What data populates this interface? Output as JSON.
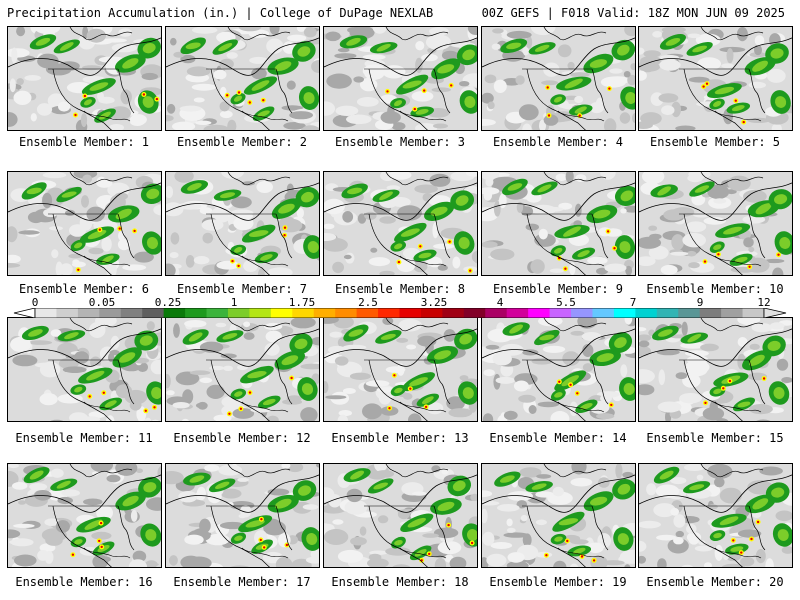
{
  "header": {
    "left": "Precipitation Accumulation (in.) | College of DuPage NEXLAB",
    "right": "00Z GEFS | F018 Valid: 18Z MON JUN 09 2025"
  },
  "panels": [
    "Ensemble Member: 1",
    "Ensemble Member: 2",
    "Ensemble Member: 3",
    "Ensemble Member: 4",
    "Ensemble Member: 5",
    "Ensemble Member: 6",
    "Ensemble Member: 7",
    "Ensemble Member: 8",
    "Ensemble Member: 9",
    "Ensemble Member: 10",
    "Ensemble Member: 11",
    "Ensemble Member: 12",
    "Ensemble Member: 13",
    "Ensemble Member: 14",
    "Ensemble Member: 15",
    "Ensemble Member: 16",
    "Ensemble Member: 17",
    "Ensemble Member: 18",
    "Ensemble Member: 19",
    "Ensemble Member: 20"
  ],
  "colorbar": {
    "ticks": [
      "0",
      "0.05",
      "0.25",
      "1",
      "1.75",
      "2.5",
      "3.25",
      "4",
      "5.5",
      "7",
      "9",
      "12"
    ],
    "colors": [
      "#e8e8e8",
      "#cfcfcf",
      "#b4b4b4",
      "#9a9a9a",
      "#808080",
      "#5f5f5f",
      "#0a7a0a",
      "#1e9a1e",
      "#3cb43c",
      "#7ccd2a",
      "#b4e614",
      "#ffff00",
      "#ffd700",
      "#ffae00",
      "#ff8c00",
      "#ff5a00",
      "#ff2800",
      "#e60000",
      "#c80000",
      "#a00014",
      "#820028",
      "#aa0064",
      "#d2009b",
      "#ff00ff",
      "#c864ff",
      "#9696ff",
      "#64c8ff",
      "#00ffff",
      "#00d2d2",
      "#32b4b4",
      "#5a9696",
      "#7d7d7d",
      "#a0a0a0",
      "#c8c8c8"
    ]
  }
}
